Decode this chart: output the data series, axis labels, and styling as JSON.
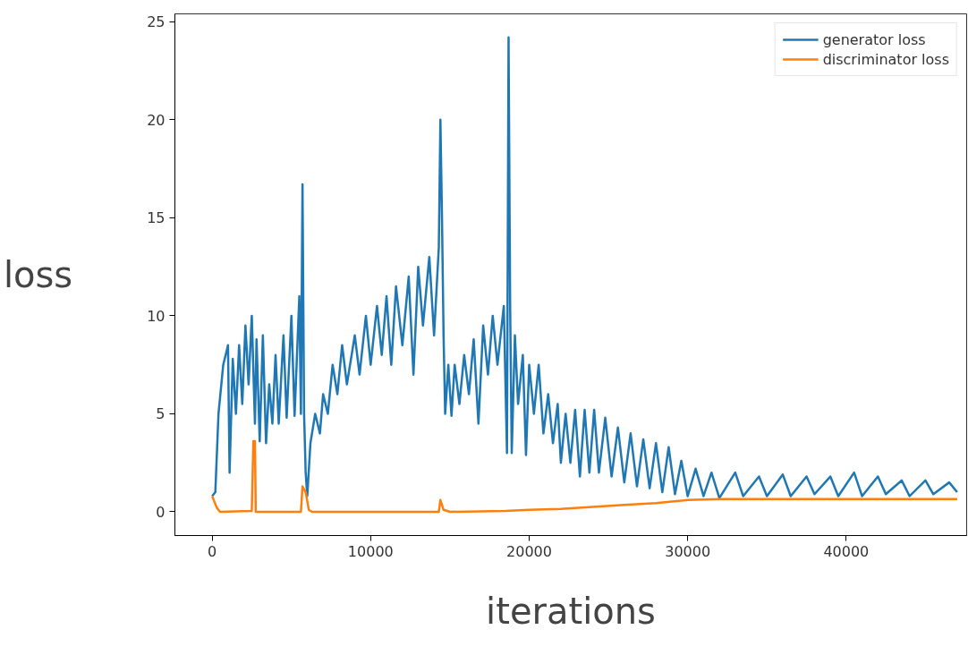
{
  "chart_data": {
    "type": "line",
    "xlabel": "iterations",
    "ylabel": "loss",
    "xlim": [
      -2350,
      47600
    ],
    "ylim": [
      -1.21,
      25.4
    ],
    "xticks": [
      0,
      10000,
      20000,
      30000,
      40000
    ],
    "yticks": [
      0,
      5,
      10,
      15,
      20,
      25
    ],
    "grid": false,
    "legend": "top right",
    "marker": "none",
    "line_style": "solid",
    "series": [
      {
        "name": "generator loss",
        "color": "#1f77b4",
        "x": [
          0,
          200,
          400,
          700,
          1000,
          1100,
          1300,
          1500,
          1700,
          1900,
          2100,
          2300,
          2500,
          2700,
          2800,
          3000,
          3200,
          3400,
          3600,
          3800,
          4000,
          4200,
          4500,
          4700,
          5000,
          5200,
          5500,
          5600,
          5700,
          5800,
          5900,
          6000,
          6200,
          6500,
          6800,
          7000,
          7300,
          7600,
          7900,
          8200,
          8500,
          9000,
          9300,
          9700,
          10000,
          10400,
          10700,
          11000,
          11300,
          11600,
          12000,
          12400,
          12700,
          13000,
          13300,
          13700,
          14000,
          14300,
          14400,
          14500,
          14600,
          14700,
          14900,
          15100,
          15300,
          15600,
          15900,
          16200,
          16500,
          16800,
          17100,
          17400,
          17700,
          18000,
          18400,
          18600,
          18700,
          18800,
          18900,
          19100,
          19300,
          19600,
          19800,
          20000,
          20300,
          20600,
          20900,
          21200,
          21500,
          21800,
          22000,
          22300,
          22600,
          22900,
          23200,
          23500,
          23800,
          24100,
          24400,
          24800,
          25200,
          25600,
          26000,
          26400,
          26800,
          27200,
          27600,
          28000,
          28400,
          28800,
          29200,
          29600,
          30000,
          30500,
          31000,
          31500,
          32000,
          33000,
          33500,
          34500,
          35000,
          36000,
          36500,
          37500,
          38000,
          39000,
          39500,
          40500,
          41000,
          42000,
          42500,
          43500,
          44000,
          45000,
          45500,
          46500,
          47000
        ],
        "values": [
          0.8,
          1,
          5,
          7.5,
          8.5,
          2,
          7.8,
          5,
          8.5,
          5.5,
          9.5,
          6.5,
          10,
          4.5,
          8.8,
          3.6,
          9,
          3.5,
          6.5,
          4.5,
          8,
          4.5,
          9,
          4.8,
          10,
          4.9,
          11,
          5,
          16.7,
          5,
          2,
          0.8,
          3.5,
          5,
          4,
          6,
          5,
          7.5,
          6,
          8.5,
          6.5,
          9,
          7,
          10,
          7.5,
          10.5,
          8,
          11,
          7.5,
          11.5,
          8.5,
          12,
          7,
          12.5,
          9.5,
          13,
          9,
          13.5,
          20,
          15,
          9,
          5,
          7.5,
          4.9,
          7.5,
          5.5,
          8,
          6,
          8.8,
          4.5,
          9.5,
          7,
          10,
          7.5,
          10.5,
          3,
          24.2,
          10.5,
          3,
          9,
          5.5,
          8,
          2.9,
          7.5,
          5,
          7.5,
          4,
          6,
          3.5,
          5.5,
          2.5,
          5,
          2.5,
          5.2,
          1.8,
          5.2,
          2,
          5.2,
          2,
          4.8,
          1.8,
          4.3,
          1.5,
          4,
          1.3,
          3.7,
          1.2,
          3.5,
          1,
          3.3,
          0.9,
          2.6,
          0.8,
          2.2,
          0.8,
          2,
          0.7,
          2,
          0.8,
          1.8,
          0.8,
          1.9,
          0.8,
          1.8,
          0.9,
          1.8,
          0.8,
          2,
          0.8,
          1.8,
          0.9,
          1.6,
          0.8,
          1.6,
          0.9,
          1.5,
          1.0
        ]
      },
      {
        "name": "discriminator loss",
        "color": "#ff7f0e",
        "x": [
          0,
          300,
          500,
          2500,
          2600,
          2700,
          2750,
          5600,
          5700,
          5900,
          6100,
          6300,
          14300,
          14400,
          14600,
          15000,
          18500,
          20000,
          22000,
          24000,
          26000,
          28000,
          30000,
          32000,
          36000,
          40000,
          47000
        ],
        "values": [
          0.8,
          0.2,
          0,
          0.05,
          3.6,
          3.6,
          0,
          0,
          1.3,
          1,
          0.1,
          0,
          0,
          0.6,
          0.1,
          0,
          0.05,
          0.1,
          0.15,
          0.25,
          0.35,
          0.45,
          0.6,
          0.65,
          0.65,
          0.65,
          0.65
        ]
      }
    ]
  }
}
